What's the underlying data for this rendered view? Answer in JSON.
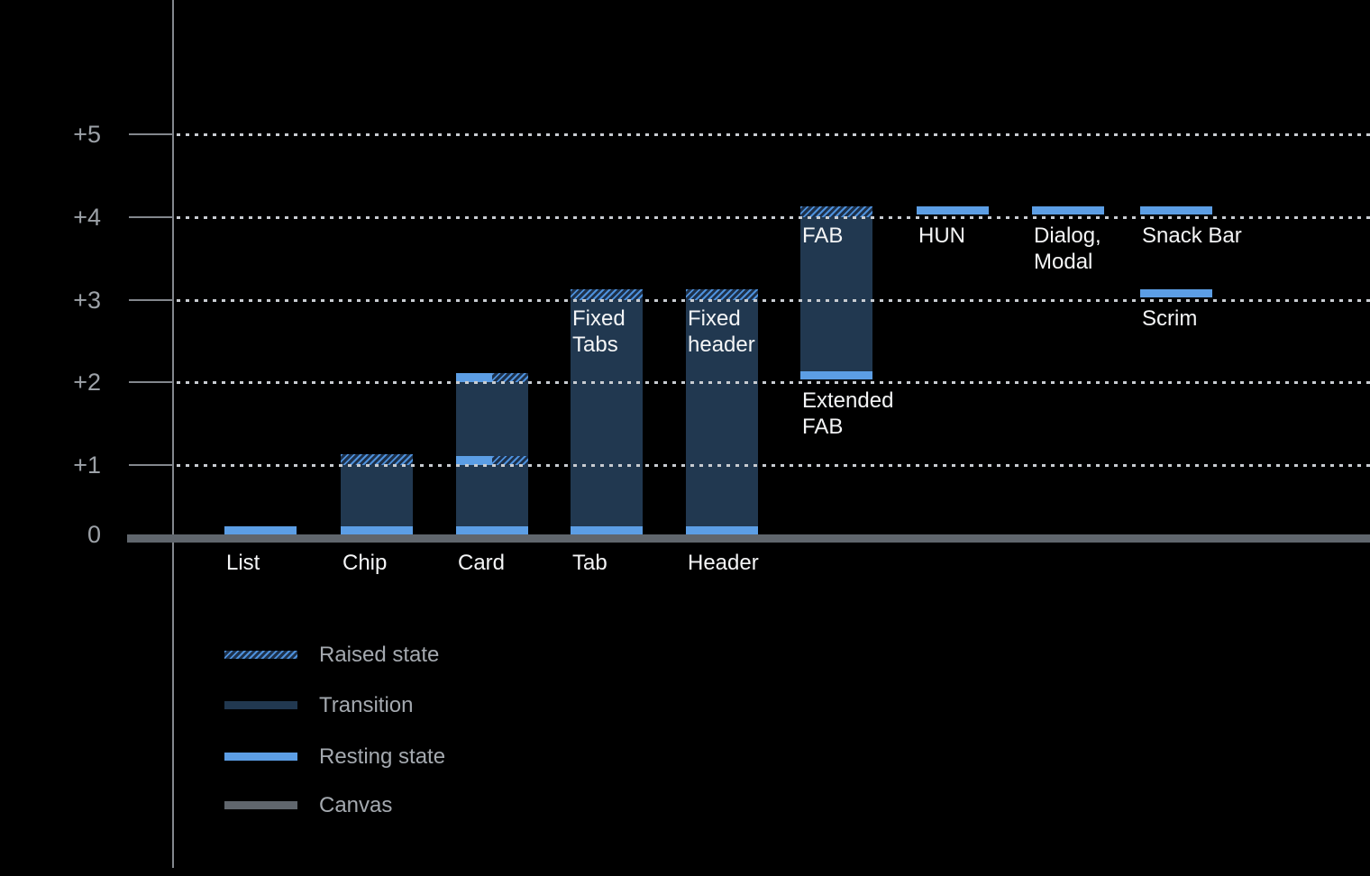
{
  "chart_data": {
    "type": "bar",
    "title": "",
    "xlabel": "",
    "ylabel": "",
    "y_axis": {
      "tick_labels": [
        "+5",
        "+4",
        "+3",
        "+2",
        "+1",
        "0"
      ],
      "levels": [
        5,
        4,
        3,
        2,
        1,
        0
      ],
      "ylim": [
        0,
        5
      ],
      "grid": "dotted-horizontal"
    },
    "legend": {
      "position": "bottom-left",
      "entries": [
        {
          "key": "raised",
          "label": "Raised state",
          "style": "hatched"
        },
        {
          "key": "transition",
          "label": "Transition",
          "style": "solid"
        },
        {
          "key": "resting",
          "label": "Resting state",
          "style": "solid"
        },
        {
          "key": "canvas",
          "label": "Canvas",
          "style": "solid"
        }
      ]
    },
    "components": [
      {
        "name": "List",
        "resting_elevation": 0,
        "category_label": {
          "lines": [
            "List"
          ],
          "at_level": 0
        },
        "segments": [
          {
            "type": "resting",
            "level": 0
          }
        ]
      },
      {
        "name": "Chip",
        "resting_elevation": 0,
        "raised_elevation": 1,
        "category_label": {
          "lines": [
            "Chip"
          ],
          "at_level": 0
        },
        "segments": [
          {
            "type": "raised",
            "level": 1
          },
          {
            "type": "transition",
            "from": 0,
            "to": 1
          },
          {
            "type": "resting",
            "level": 0
          }
        ]
      },
      {
        "name": "Card",
        "resting_elevation": 0,
        "raised_elevation": 2,
        "category_label": {
          "lines": [
            "Card"
          ],
          "at_level": 0
        },
        "segments": [
          {
            "type": "mixed",
            "level": 2
          },
          {
            "type": "transition",
            "from": 1,
            "to": 2
          },
          {
            "type": "mixed",
            "level": 1
          },
          {
            "type": "transition",
            "from": 0,
            "to": 1
          },
          {
            "type": "resting",
            "level": 0
          }
        ]
      },
      {
        "name": "Tab",
        "resting_elevation": 0,
        "raised_elevation": 3,
        "category_label": {
          "lines": [
            "Tab"
          ],
          "at_level": 0
        },
        "inner_label": {
          "lines": [
            "Fixed",
            "Tabs"
          ],
          "at_level": 3
        },
        "segments": [
          {
            "type": "raised",
            "level": 3
          },
          {
            "type": "transition",
            "from": 0,
            "to": 3
          },
          {
            "type": "resting",
            "level": 0
          }
        ]
      },
      {
        "name": "Header",
        "resting_elevation": 0,
        "raised_elevation": 3,
        "category_label": {
          "lines": [
            "Header"
          ],
          "at_level": 0
        },
        "inner_label": {
          "lines": [
            "Fixed",
            "header"
          ],
          "at_level": 3
        },
        "segments": [
          {
            "type": "raised",
            "level": 3
          },
          {
            "type": "transition",
            "from": 0,
            "to": 3
          },
          {
            "type": "resting",
            "level": 0
          }
        ]
      },
      {
        "name": "Extended FAB",
        "resting_elevation": 2,
        "raised_elevation": 4,
        "category_label": {
          "lines": [
            "Extended",
            "FAB"
          ],
          "at_level": 2
        },
        "inner_label": {
          "lines": [
            "FAB"
          ],
          "at_level": 4
        },
        "segments": [
          {
            "type": "raised",
            "level": 4
          },
          {
            "type": "transition",
            "from": 2,
            "to": 4
          },
          {
            "type": "resting",
            "level": 2
          }
        ]
      },
      {
        "name": "HUN",
        "resting_elevation": 4,
        "category_label": {
          "lines": [
            "HUN"
          ],
          "at_level": 4
        },
        "segments": [
          {
            "type": "resting",
            "level": 4
          }
        ]
      },
      {
        "name": "Dialog, Modal",
        "resting_elevation": 4,
        "category_label": {
          "lines": [
            "Dialog,",
            "Modal"
          ],
          "at_level": 4
        },
        "segments": [
          {
            "type": "resting",
            "level": 4
          }
        ]
      },
      {
        "name": "Snack Bar",
        "resting_elevation": 4,
        "category_label": {
          "lines": [
            "Snack Bar"
          ],
          "at_level": 4
        },
        "segments": [
          {
            "type": "resting",
            "level": 4
          }
        ]
      },
      {
        "name": "Scrim",
        "resting_elevation": 3,
        "category_label": {
          "lines": [
            "Scrim"
          ],
          "at_level": 3
        },
        "segments": [
          {
            "type": "resting",
            "level": 3
          }
        ]
      }
    ],
    "colors": {
      "background": "#000000",
      "resting": "#5C9EE5",
      "transition": "#213850",
      "hatch_stripe": "#4D90DB",
      "hatch_bg": "#1D3049",
      "canvas": "#60666D",
      "axis": "#83878D",
      "y_label": "#9CA1A7",
      "legend_text": "#A4A9AF",
      "gridline": "#C8CCD1",
      "bar_text": "#F4F5F6"
    }
  }
}
